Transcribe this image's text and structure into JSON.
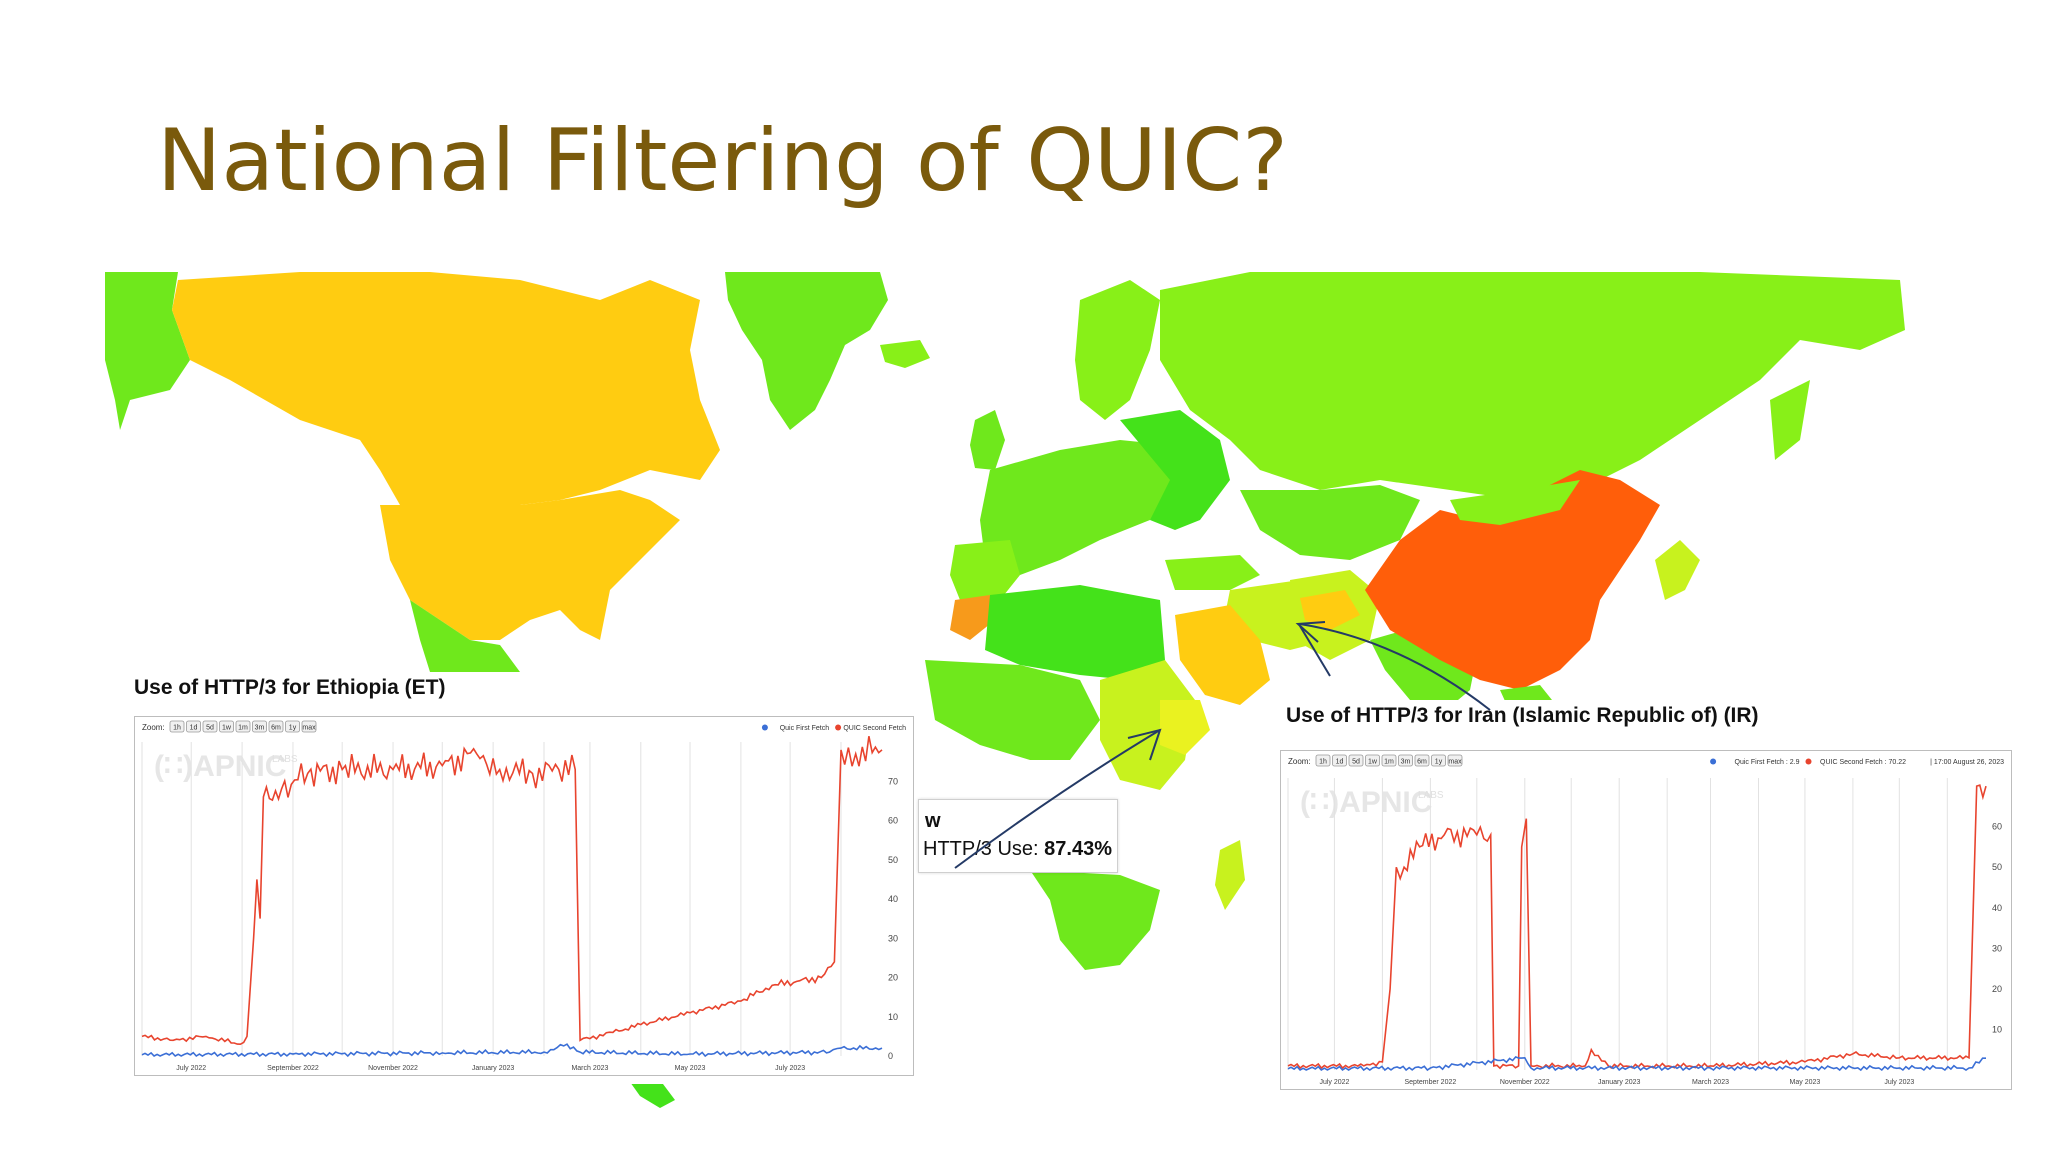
{
  "slide": {
    "title": "National Filtering of QUIC?"
  },
  "map": {
    "colors": {
      "americas": "#ffcc11",
      "china": "#ff5e0a",
      "russia": "#88f018",
      "green_dark": "#44e21a",
      "green_mid": "#6fe81c",
      "yellow_green": "#c8f21e",
      "yellow": "#eaf220",
      "orange_small": "#f79a1b"
    },
    "tooltip": {
      "head": "w",
      "label": "HTTP/3 Use: ",
      "value": "87.43%"
    }
  },
  "charts": [
    {
      "id": "ethiopia",
      "title": "Use of HTTP/3 for Ethiopia (ET)",
      "zoom_label": "Zoom:",
      "zoom_buttons": [
        "1h",
        "1d",
        "5d",
        "1w",
        "1m",
        "3m",
        "6m",
        "1y",
        "max"
      ],
      "legend": [
        {
          "name": "Quic First Fetch",
          "color": "#3b6fd6"
        },
        {
          "name": "QUIC Second Fetch",
          "color": "#e8442e"
        }
      ],
      "watermark": "APNIC",
      "watermark_sub": "LABS",
      "y_ticks": [
        0,
        10,
        20,
        30,
        40,
        50,
        60,
        70
      ],
      "x_ticks": [
        "July 2022",
        "September 2022",
        "November 2022",
        "January 2023",
        "March 2023",
        "May 2023",
        "July 2023"
      ]
    },
    {
      "id": "iran",
      "title": "Use of HTTP/3 for Iran (Islamic Republic of) (IR)",
      "zoom_label": "Zoom:",
      "zoom_buttons": [
        "1h",
        "1d",
        "5d",
        "1w",
        "1m",
        "3m",
        "6m",
        "1y",
        "max"
      ],
      "legend": [
        {
          "name": "Quic First Fetch : 2.9",
          "color": "#3b6fd6"
        },
        {
          "name": "QUIC Second Fetch : 70.22",
          "color": "#e8442e"
        }
      ],
      "legend_extra": "17:00 August 26, 2023",
      "watermark": "APNIC",
      "watermark_sub": "LABS",
      "y_ticks": [
        10,
        20,
        30,
        40,
        50,
        60
      ],
      "x_ticks": [
        "July 2022",
        "September 2022",
        "November 2022",
        "January 2023",
        "March 2023",
        "May 2023",
        "July 2023"
      ]
    }
  ],
  "chart_data": [
    {
      "type": "line",
      "title": "Use of HTTP/3 for Ethiopia (ET)",
      "xlabel": "",
      "ylabel": "",
      "x_range": [
        "2022-06-01",
        "2023-08-26"
      ],
      "ylim": [
        0,
        80
      ],
      "series": [
        {
          "name": "QUIC Second Fetch",
          "points": [
            [
              "2022-06-01",
              5
            ],
            [
              "2022-06-20",
              4
            ],
            [
              "2022-07-10",
              5
            ],
            [
              "2022-07-31",
              3
            ],
            [
              "2022-08-04",
              5
            ],
            [
              "2022-08-08",
              30
            ],
            [
              "2022-08-10",
              45
            ],
            [
              "2022-08-12",
              35
            ],
            [
              "2022-08-14",
              66
            ],
            [
              "2022-08-25",
              68
            ],
            [
              "2022-09-10",
              72
            ],
            [
              "2022-10-01",
              73
            ],
            [
              "2022-11-01",
              73
            ],
            [
              "2022-12-01",
              74
            ],
            [
              "2022-12-22",
              77
            ],
            [
              "2023-01-05",
              73
            ],
            [
              "2023-01-25",
              72
            ],
            [
              "2023-02-10",
              73
            ],
            [
              "2023-02-20",
              73
            ],
            [
              "2023-02-23",
              4
            ],
            [
              "2023-03-15",
              6
            ],
            [
              "2023-04-01",
              8
            ],
            [
              "2023-05-01",
              11
            ],
            [
              "2023-06-01",
              14
            ],
            [
              "2023-06-20",
              18
            ],
            [
              "2023-07-05",
              19
            ],
            [
              "2023-07-20",
              20
            ],
            [
              "2023-07-28",
              24
            ],
            [
              "2023-08-01",
              78
            ],
            [
              "2023-08-10",
              77
            ],
            [
              "2023-08-26",
              78
            ]
          ]
        },
        {
          "name": "Quic First Fetch",
          "points": [
            [
              "2022-06-01",
              0.3
            ],
            [
              "2022-09-01",
              0.5
            ],
            [
              "2022-12-01",
              0.8
            ],
            [
              "2023-02-01",
              1
            ],
            [
              "2023-02-15",
              3
            ],
            [
              "2023-02-23",
              1
            ],
            [
              "2023-05-01",
              0.5
            ],
            [
              "2023-07-25",
              1
            ],
            [
              "2023-08-01",
              2
            ],
            [
              "2023-08-26",
              2
            ]
          ]
        }
      ]
    },
    {
      "type": "line",
      "title": "Use of HTTP/3 for Iran (Islamic Republic of) (IR)",
      "xlabel": "",
      "ylabel": "",
      "x_range": [
        "2022-06-01",
        "2023-08-26"
      ],
      "ylim": [
        0,
        72
      ],
      "series": [
        {
          "name": "QUIC Second Fetch",
          "points": [
            [
              "2022-06-01",
              1
            ],
            [
              "2022-07-20",
              1
            ],
            [
              "2022-08-01",
              2
            ],
            [
              "2022-08-06",
              20
            ],
            [
              "2022-08-10",
              50
            ],
            [
              "2022-08-15",
              50
            ],
            [
              "2022-08-25",
              55
            ],
            [
              "2022-09-10",
              58
            ],
            [
              "2022-10-01",
              58
            ],
            [
              "2022-10-10",
              58
            ],
            [
              "2022-10-12",
              1
            ],
            [
              "2022-10-28",
              1
            ],
            [
              "2022-10-30",
              55
            ],
            [
              "2022-11-02",
              62
            ],
            [
              "2022-11-05",
              1
            ],
            [
              "2022-12-10",
              1
            ],
            [
              "2022-12-14",
              5
            ],
            [
              "2022-12-25",
              1
            ],
            [
              "2023-03-01",
              1
            ],
            [
              "2023-05-01",
              2
            ],
            [
              "2023-06-01",
              4
            ],
            [
              "2023-07-01",
              3
            ],
            [
              "2023-08-15",
              3
            ],
            [
              "2023-08-20",
              70
            ],
            [
              "2023-08-26",
              70
            ]
          ]
        },
        {
          "name": "Quic First Fetch",
          "points": [
            [
              "2022-06-01",
              0.3
            ],
            [
              "2022-09-01",
              0.5
            ],
            [
              "2022-11-01",
              3
            ],
            [
              "2022-11-05",
              0.5
            ],
            [
              "2023-03-01",
              0.5
            ],
            [
              "2023-08-15",
              0.5
            ],
            [
              "2023-08-26",
              2.9
            ]
          ]
        }
      ]
    }
  ]
}
